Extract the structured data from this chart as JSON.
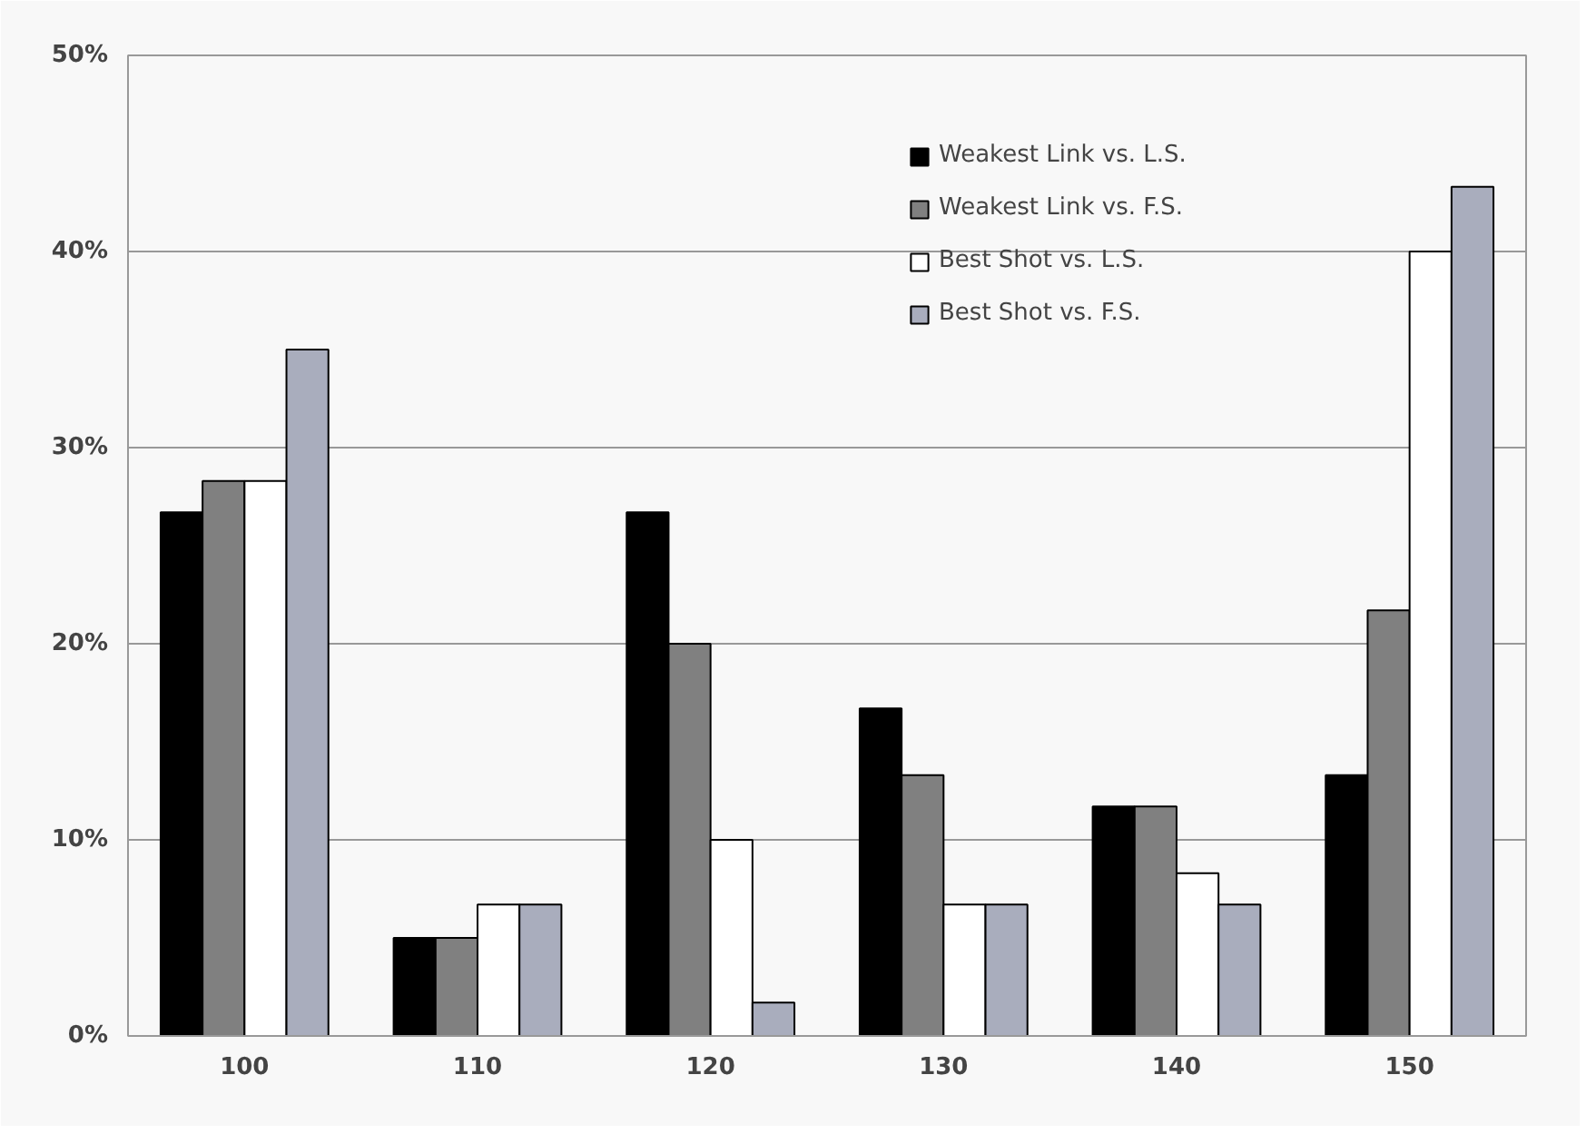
{
  "chart_data": {
    "type": "bar",
    "categories": [
      "100",
      "110",
      "120",
      "130",
      "140",
      "150"
    ],
    "ylim": [
      0,
      50
    ],
    "yticks": [
      {
        "value": 0,
        "label": "0%"
      },
      {
        "value": 10,
        "label": "10%"
      },
      {
        "value": 20,
        "label": "20%"
      },
      {
        "value": 30,
        "label": "30%"
      },
      {
        "value": 40,
        "label": "40%"
      },
      {
        "value": 50,
        "label": "50%"
      }
    ],
    "grid": "y",
    "legend": "top right",
    "series": [
      {
        "name": "Weakest Link vs. L.S.",
        "color": "#000000",
        "values": [
          26.7,
          5,
          26.7,
          16.7,
          11.7,
          13.3
        ]
      },
      {
        "name": "Weakest Link vs. F.S.",
        "color": "#808080",
        "values": [
          28.3,
          5,
          20,
          13.3,
          11.7,
          21.7
        ]
      },
      {
        "name": "Best Shot vs. L.S.",
        "color": "#ffffff",
        "values": [
          28.3,
          6.7,
          10,
          6.7,
          8.3,
          40
        ]
      },
      {
        "name": "Best Shot vs. F.S.",
        "color": "#a9adbd",
        "values": [
          35,
          6.7,
          1.7,
          6.7,
          6.7,
          43.3
        ]
      }
    ]
  }
}
